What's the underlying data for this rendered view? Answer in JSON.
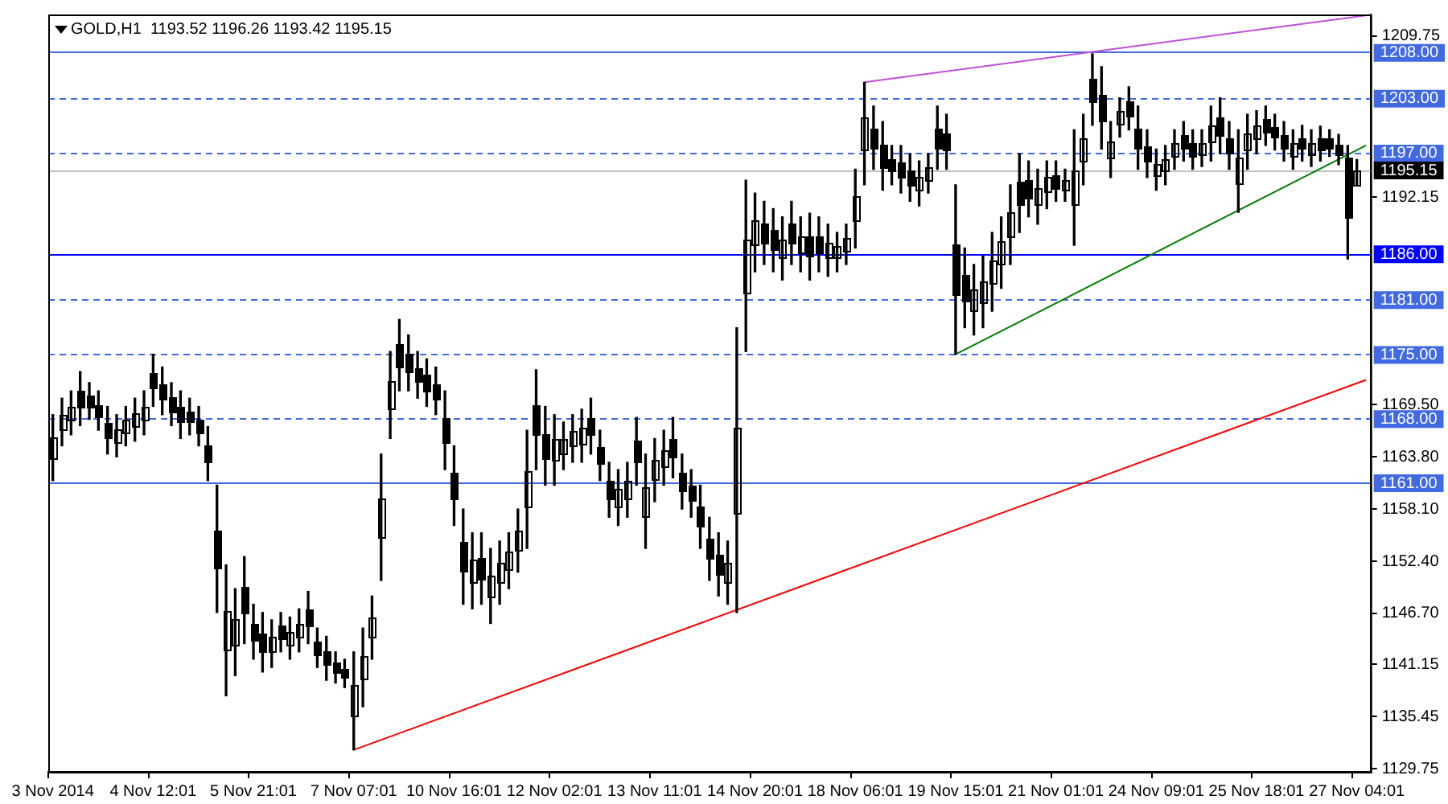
{
  "chart_data": {
    "type": "candlestick",
    "title": "GOLD,H1  1193.52 1196.26 1193.42 1195.15",
    "color": "#000000",
    "categories": [
      "3 Nov 2014",
      null,
      null,
      null,
      null,
      null,
      null,
      null,
      null,
      null,
      null,
      "4 Nov 12:01",
      null,
      null,
      null,
      null,
      null,
      null,
      null,
      null,
      null,
      null,
      "5 Nov 21:01",
      null,
      null,
      null,
      null,
      null,
      null,
      null,
      null,
      null,
      null,
      "7 Nov 07:01",
      null,
      null,
      null,
      null,
      null,
      null,
      null,
      null,
      null,
      null,
      "10 Nov 16:01",
      null,
      null,
      null,
      null,
      null,
      null,
      null,
      null,
      null,
      null,
      "12 Nov 02:01",
      null,
      null,
      null,
      null,
      null,
      null,
      null,
      null,
      null,
      null,
      "13 Nov 11:01",
      null,
      null,
      null,
      null,
      null,
      null,
      null,
      null,
      null,
      null,
      "14 Nov 20:01",
      null,
      null,
      null,
      null,
      null,
      null,
      null,
      null,
      null,
      null,
      "18 Nov 06:01",
      null,
      null,
      null,
      null,
      null,
      null,
      null,
      null,
      null,
      null,
      "19 Nov 15:01",
      null,
      null,
      null,
      null,
      null,
      null,
      null,
      null,
      null,
      null,
      "21 Nov 01:01",
      null,
      null,
      null,
      null,
      null,
      null,
      null,
      null,
      null,
      null,
      "24 Nov 09:01",
      null,
      null,
      null,
      null,
      null,
      null,
      null,
      null,
      null,
      null,
      "25 Nov 18:01",
      null,
      null,
      null,
      null,
      null,
      null,
      null,
      null,
      null,
      null,
      "27 Nov 04:01",
      null
    ],
    "ohlc": [
      [
        1163.7,
        1168.4,
        1161.2,
        1165.9
      ],
      [
        1166.8,
        1170.2,
        1165.0,
        1168.4
      ],
      [
        1167.9,
        1171.0,
        1166.2,
        1169.3
      ],
      [
        1171.0,
        1173.1,
        1167.2,
        1169.3
      ],
      [
        1170.5,
        1171.9,
        1167.9,
        1169.3
      ],
      [
        1169.5,
        1171.0,
        1166.7,
        1168.2
      ],
      [
        1167.5,
        1169.3,
        1164.1,
        1165.9
      ],
      [
        1165.4,
        1168.4,
        1163.8,
        1166.8
      ],
      [
        1166.5,
        1169.3,
        1165.0,
        1167.8
      ],
      [
        1167.1,
        1170.2,
        1165.5,
        1168.6
      ],
      [
        1167.9,
        1171.0,
        1166.2,
        1169.3
      ],
      [
        1173.0,
        1175.0,
        1169.3,
        1171.3
      ],
      [
        1171.8,
        1173.6,
        1168.4,
        1170.2
      ],
      [
        1170.3,
        1171.9,
        1167.2,
        1168.8
      ],
      [
        1169.2,
        1171.0,
        1165.8,
        1167.6
      ],
      [
        1168.8,
        1170.2,
        1166.2,
        1167.6
      ],
      [
        1167.8,
        1169.3,
        1165.0,
        1166.5
      ],
      [
        1165.0,
        1167.1,
        1161.2,
        1163.3
      ],
      [
        1155.8,
        1160.7,
        1146.8,
        1151.7
      ],
      [
        1142.7,
        1152.0,
        1137.7,
        1147.0
      ],
      [
        1143.2,
        1149.4,
        1139.9,
        1146.1
      ],
      [
        1149.6,
        1152.9,
        1143.4,
        1146.7
      ],
      [
        1145.6,
        1147.7,
        1141.7,
        1143.8
      ],
      [
        1144.5,
        1146.8,
        1140.3,
        1142.6
      ],
      [
        1142.6,
        1146.0,
        1140.8,
        1144.2
      ],
      [
        1145.3,
        1146.8,
        1142.5,
        1144.0
      ],
      [
        1143.3,
        1146.3,
        1141.7,
        1144.7
      ],
      [
        1144.1,
        1147.2,
        1142.5,
        1145.6
      ],
      [
        1147.1,
        1149.1,
        1143.4,
        1145.4
      ],
      [
        1143.6,
        1145.1,
        1140.8,
        1142.3
      ],
      [
        1142.5,
        1144.2,
        1139.4,
        1141.1
      ],
      [
        1141.3,
        1142.5,
        1139.1,
        1140.3
      ],
      [
        1140.6,
        1141.7,
        1138.6,
        1139.7
      ],
      [
        1135.5,
        1142.5,
        1131.8,
        1138.8
      ],
      [
        1139.5,
        1145.1,
        1136.5,
        1142.1
      ],
      [
        1144.1,
        1148.6,
        1141.7,
        1146.2
      ],
      [
        1155.1,
        1164.1,
        1150.3,
        1159.3
      ],
      [
        1169.1,
        1175.3,
        1165.8,
        1172.0
      ],
      [
        1176.1,
        1178.8,
        1171.0,
        1173.7
      ],
      [
        1175.0,
        1177.1,
        1171.0,
        1173.1
      ],
      [
        1173.5,
        1175.3,
        1170.2,
        1172.0
      ],
      [
        1172.7,
        1174.5,
        1169.3,
        1171.1
      ],
      [
        1171.8,
        1173.6,
        1168.4,
        1170.2
      ],
      [
        1168.0,
        1171.0,
        1162.4,
        1165.4
      ],
      [
        1162.0,
        1165.0,
        1156.3,
        1159.3
      ],
      [
        1154.5,
        1158.1,
        1147.7,
        1151.3
      ],
      [
        1150.1,
        1155.5,
        1147.2,
        1152.6
      ],
      [
        1152.8,
        1155.5,
        1147.7,
        1150.4
      ],
      [
        1148.5,
        1153.8,
        1145.6,
        1150.9
      ],
      [
        1150.1,
        1154.6,
        1147.7,
        1152.2
      ],
      [
        1151.5,
        1155.5,
        1149.4,
        1153.4
      ],
      [
        1153.6,
        1158.1,
        1151.2,
        1155.7
      ],
      [
        1158.3,
        1166.7,
        1153.8,
        1162.2
      ],
      [
        1169.5,
        1173.3,
        1162.4,
        1166.2
      ],
      [
        1166.3,
        1169.3,
        1160.7,
        1163.7
      ],
      [
        1163.4,
        1168.4,
        1160.7,
        1165.7
      ],
      [
        1164.2,
        1167.6,
        1162.4,
        1165.8
      ],
      [
        1165.0,
        1168.4,
        1163.2,
        1166.6
      ],
      [
        1165.2,
        1169.0,
        1163.2,
        1167.0
      ],
      [
        1168.1,
        1170.2,
        1164.1,
        1166.2
      ],
      [
        1164.8,
        1166.7,
        1161.2,
        1163.1
      ],
      [
        1161.1,
        1163.2,
        1157.2,
        1159.3
      ],
      [
        1158.4,
        1162.4,
        1156.3,
        1160.3
      ],
      [
        1159.3,
        1163.2,
        1157.2,
        1161.1
      ],
      [
        1165.5,
        1168.1,
        1160.7,
        1163.3
      ],
      [
        1157.4,
        1164.1,
        1153.8,
        1160.5
      ],
      [
        1161.3,
        1165.8,
        1158.9,
        1163.4
      ],
      [
        1162.8,
        1166.7,
        1160.7,
        1164.6
      ],
      [
        1165.8,
        1168.1,
        1161.5,
        1163.8
      ],
      [
        1162.0,
        1164.1,
        1158.1,
        1160.2
      ],
      [
        1160.6,
        1162.4,
        1157.2,
        1159.0
      ],
      [
        1158.3,
        1160.7,
        1153.8,
        1156.2
      ],
      [
        1154.8,
        1157.2,
        1150.3,
        1152.7
      ],
      [
        1153.1,
        1155.5,
        1148.6,
        1151.0
      ],
      [
        1150.1,
        1154.6,
        1147.7,
        1152.2
      ],
      [
        1157.7,
        1177.9,
        1146.8,
        1167.0
      ],
      [
        1181.8,
        1194.0,
        1175.3,
        1187.5
      ],
      [
        1187.0,
        1192.6,
        1184.0,
        1189.6
      ],
      [
        1189.3,
        1191.7,
        1184.8,
        1187.2
      ],
      [
        1188.5,
        1190.9,
        1184.0,
        1186.4
      ],
      [
        1185.5,
        1190.0,
        1183.1,
        1187.6
      ],
      [
        1189.3,
        1191.7,
        1184.8,
        1187.2
      ],
      [
        1186.1,
        1190.0,
        1184.0,
        1187.9
      ],
      [
        1187.8,
        1190.4,
        1183.1,
        1185.7
      ],
      [
        1187.9,
        1190.0,
        1184.0,
        1186.1
      ],
      [
        1185.5,
        1189.2,
        1183.5,
        1187.2
      ],
      [
        1185.5,
        1188.3,
        1184.0,
        1186.8
      ],
      [
        1186.3,
        1189.2,
        1184.8,
        1187.7
      ],
      [
        1189.6,
        1195.2,
        1186.6,
        1192.2
      ],
      [
        1197.4,
        1204.7,
        1193.5,
        1200.8
      ],
      [
        1199.7,
        1202.1,
        1195.2,
        1197.6
      ],
      [
        1197.8,
        1200.4,
        1192.9,
        1195.5
      ],
      [
        1196.3,
        1197.8,
        1193.5,
        1195.0
      ],
      [
        1196.0,
        1197.8,
        1192.6,
        1194.4
      ],
      [
        1195.1,
        1196.9,
        1191.7,
        1193.5
      ],
      [
        1192.9,
        1196.1,
        1191.2,
        1194.4
      ],
      [
        1194.1,
        1196.9,
        1192.6,
        1195.4
      ],
      [
        1199.7,
        1202.1,
        1195.2,
        1197.6
      ],
      [
        1199.1,
        1201.2,
        1195.2,
        1197.3
      ],
      [
        1187.0,
        1193.5,
        1175.0,
        1181.5
      ],
      [
        1183.6,
        1186.6,
        1177.9,
        1180.9
      ],
      [
        1179.8,
        1184.8,
        1177.1,
        1182.1
      ],
      [
        1180.6,
        1185.7,
        1177.9,
        1183.0
      ],
      [
        1182.7,
        1188.3,
        1179.7,
        1185.3
      ],
      [
        1184.9,
        1190.0,
        1182.2,
        1187.3
      ],
      [
        1187.8,
        1193.5,
        1184.8,
        1190.5
      ],
      [
        1193.9,
        1196.9,
        1188.3,
        1191.3
      ],
      [
        1194.0,
        1196.1,
        1190.0,
        1192.1
      ],
      [
        1191.3,
        1195.2,
        1189.2,
        1193.1
      ],
      [
        1192.7,
        1196.1,
        1190.9,
        1194.3
      ],
      [
        1194.6,
        1196.1,
        1191.7,
        1193.2
      ],
      [
        1192.9,
        1195.2,
        1191.7,
        1194.0
      ],
      [
        1191.3,
        1199.5,
        1186.9,
        1195.1
      ],
      [
        1196.2,
        1201.2,
        1193.5,
        1198.5
      ],
      [
        1205.1,
        1207.8,
        1200.0,
        1202.7
      ],
      [
        1203.3,
        1206.4,
        1197.4,
        1200.5
      ],
      [
        1196.4,
        1200.4,
        1194.3,
        1198.3
      ],
      [
        1200.2,
        1203.0,
        1198.7,
        1201.5
      ],
      [
        1202.6,
        1204.2,
        1199.5,
        1201.1
      ],
      [
        1199.7,
        1202.1,
        1195.2,
        1197.6
      ],
      [
        1197.7,
        1199.5,
        1194.3,
        1196.1
      ],
      [
        1194.5,
        1197.4,
        1192.9,
        1195.8
      ],
      [
        1195.0,
        1197.8,
        1193.5,
        1196.3
      ],
      [
        1196.7,
        1199.5,
        1195.2,
        1198.0
      ],
      [
        1198.9,
        1200.4,
        1196.1,
        1197.6
      ],
      [
        1198.0,
        1199.5,
        1195.2,
        1196.7
      ],
      [
        1196.9,
        1199.5,
        1195.5,
        1198.1
      ],
      [
        1198.2,
        1202.1,
        1196.1,
        1200.0
      ],
      [
        1200.9,
        1203.0,
        1196.9,
        1199.0
      ],
      [
        1198.6,
        1200.4,
        1195.2,
        1197.0
      ],
      [
        1193.6,
        1199.5,
        1190.5,
        1196.4
      ],
      [
        1197.3,
        1201.2,
        1195.2,
        1199.1
      ],
      [
        1198.5,
        1201.6,
        1196.9,
        1200.0
      ],
      [
        1200.6,
        1202.1,
        1197.8,
        1199.3
      ],
      [
        1199.8,
        1201.2,
        1197.3,
        1198.7
      ],
      [
        1198.9,
        1200.4,
        1196.1,
        1197.6
      ],
      [
        1196.7,
        1199.5,
        1195.2,
        1198.0
      ],
      [
        1198.6,
        1200.0,
        1196.1,
        1197.5
      ],
      [
        1196.9,
        1199.5,
        1195.5,
        1198.1
      ],
      [
        1198.6,
        1199.9,
        1196.1,
        1197.4
      ],
      [
        1198.5,
        1199.5,
        1196.6,
        1197.6
      ],
      [
        1197.8,
        1199.0,
        1195.7,
        1196.8
      ],
      [
        1196.5,
        1197.8,
        1185.4,
        1190.0
      ],
      [
        1193.52,
        1196.26,
        1193.42,
        1195.15
      ],
      null
    ],
    "series": [
      {
        "type": "line",
        "color": "#c050d8",
        "values": [
          null,
          null,
          null,
          null,
          null,
          null,
          null,
          null,
          null,
          null,
          null,
          null,
          null,
          null,
          null,
          null,
          null,
          null,
          null,
          null,
          null,
          null,
          null,
          null,
          null,
          null,
          null,
          null,
          null,
          null,
          null,
          null,
          null,
          null,
          null,
          null,
          null,
          null,
          null,
          null,
          null,
          null,
          null,
          null,
          null,
          null,
          null,
          null,
          null,
          null,
          null,
          null,
          null,
          null,
          null,
          null,
          null,
          null,
          null,
          null,
          null,
          null,
          null,
          null,
          null,
          null,
          null,
          null,
          null,
          null,
          null,
          null,
          null,
          null,
          null,
          null,
          null,
          null,
          null,
          null,
          null,
          null,
          null,
          null,
          null,
          null,
          null,
          null,
          null,
          1204.7,
          null,
          null,
          null,
          null,
          null,
          null,
          null,
          null,
          null,
          null,
          null,
          null,
          null,
          null,
          null,
          null,
          null,
          null,
          null,
          null,
          null,
          null,
          null,
          null,
          null,
          null,
          null,
          null,
          null,
          null,
          null,
          null,
          null,
          null,
          null,
          null,
          null,
          null,
          null,
          null,
          null,
          null,
          null,
          null,
          null,
          null,
          null,
          null,
          null,
          null,
          null,
          null,
          null,
          null,
          1212.0
        ]
      },
      {
        "type": "line",
        "color": "#008000",
        "values": [
          null,
          null,
          null,
          null,
          null,
          null,
          null,
          null,
          null,
          null,
          null,
          null,
          null,
          null,
          null,
          null,
          null,
          null,
          null,
          null,
          null,
          null,
          null,
          null,
          null,
          null,
          null,
          null,
          null,
          null,
          null,
          null,
          null,
          null,
          null,
          null,
          null,
          null,
          null,
          null,
          null,
          null,
          null,
          null,
          null,
          null,
          null,
          null,
          null,
          null,
          null,
          null,
          null,
          null,
          null,
          null,
          null,
          null,
          null,
          null,
          null,
          null,
          null,
          null,
          null,
          null,
          null,
          null,
          null,
          null,
          null,
          null,
          null,
          null,
          null,
          null,
          null,
          null,
          null,
          null,
          null,
          null,
          null,
          null,
          null,
          null,
          null,
          null,
          null,
          null,
          null,
          null,
          null,
          null,
          null,
          null,
          null,
          null,
          null,
          1175.0,
          null,
          null,
          null,
          null,
          null,
          null,
          null,
          null,
          null,
          null,
          null,
          null,
          null,
          null,
          null,
          null,
          null,
          null,
          null,
          null,
          null,
          null,
          null,
          null,
          null,
          null,
          null,
          null,
          null,
          null,
          null,
          null,
          null,
          null,
          null,
          null,
          null,
          null,
          null,
          null,
          null,
          null,
          null,
          null,
          1197.8
        ]
      },
      {
        "type": "line",
        "color": "#ff0000",
        "values": [
          null,
          null,
          null,
          null,
          null,
          null,
          null,
          null,
          null,
          null,
          null,
          null,
          null,
          null,
          null,
          null,
          null,
          null,
          null,
          null,
          null,
          null,
          null,
          null,
          null,
          null,
          null,
          null,
          null,
          null,
          null,
          null,
          null,
          1131.8,
          null,
          null,
          null,
          null,
          null,
          null,
          null,
          null,
          null,
          null,
          null,
          null,
          null,
          null,
          null,
          null,
          null,
          null,
          null,
          null,
          null,
          null,
          null,
          null,
          null,
          null,
          null,
          null,
          null,
          null,
          null,
          null,
          null,
          null,
          null,
          null,
          null,
          null,
          null,
          null,
          null,
          null,
          null,
          null,
          null,
          null,
          null,
          null,
          null,
          null,
          null,
          null,
          null,
          null,
          null,
          null,
          null,
          null,
          null,
          null,
          null,
          null,
          null,
          null,
          null,
          null,
          null,
          null,
          null,
          null,
          null,
          null,
          null,
          null,
          null,
          null,
          null,
          null,
          null,
          null,
          null,
          null,
          null,
          null,
          null,
          null,
          null,
          null,
          null,
          null,
          null,
          null,
          null,
          null,
          null,
          null,
          null,
          null,
          null,
          null,
          null,
          null,
          null,
          null,
          null,
          null,
          null,
          null,
          null,
          null,
          1172.2
        ]
      }
    ],
    "ylim": [
      1129.4,
      1212.1
    ],
    "yticks": [
      1129.75,
      1135.45,
      1141.15,
      {
        "value": 1146.7,
        "label": "1146.70"
      },
      {
        "value": 1152.4,
        "label": "1152.40"
      },
      {
        "value": 1158.1,
        "label": "1158.10"
      },
      {
        "value": 1163.8,
        "label": "1163.80"
      },
      {
        "value": 1169.5,
        "label": "1169.50"
      },
      1192.15,
      1209.75
    ],
    "ref_lines": [
      {
        "axis": "y",
        "value": 1208,
        "label": "1208.00",
        "color": "#4169e1",
        "line_style": "solid"
      },
      {
        "axis": "y",
        "value": 1203,
        "label": "1203.00",
        "color": "#4169e1",
        "line_style": "dashed"
      },
      {
        "axis": "y",
        "value": 1197,
        "label": "1197.00",
        "color": "#4169e1",
        "line_style": "dashed"
      },
      {
        "axis": "y",
        "value": 1195.15,
        "label": "1195.15",
        "color": "#c0c0c0",
        "line_style": "solid"
      },
      {
        "axis": "y",
        "value": 1186,
        "label": "1186.00",
        "color": "#0000ff",
        "line_style": "solid"
      },
      {
        "axis": "y",
        "value": 1181,
        "label": "1181.00",
        "color": "#4169e1",
        "line_style": "dashed"
      },
      {
        "axis": "y",
        "value": 1175,
        "label": "1175.00",
        "color": "#4169e1",
        "line_style": "dashed"
      },
      {
        "axis": "y",
        "value": 1168,
        "label": "1168.00",
        "color": "#4169e1",
        "line_style": "dashed"
      },
      {
        "axis": "y",
        "value": 1161,
        "label": "1161.00",
        "color": "#4169e1",
        "line_style": "solid"
      }
    ]
  }
}
